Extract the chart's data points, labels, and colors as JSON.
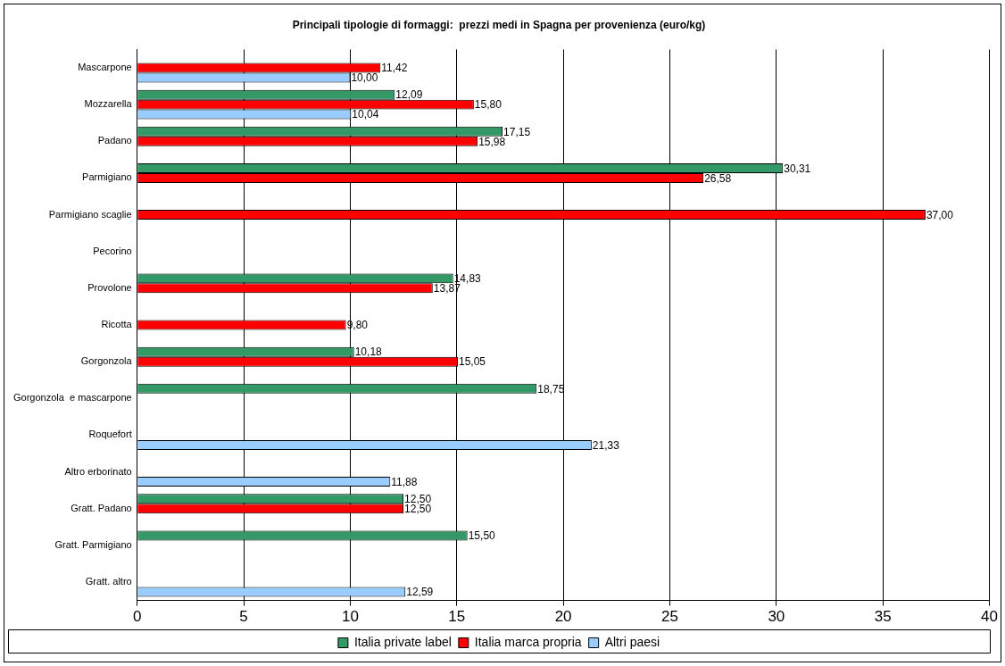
{
  "chart_data": {
    "type": "bar",
    "orientation": "horizontal",
    "title": "Principali tipologie di formaggi:  prezzi medi in Spagna per provenienza (euro/kg)",
    "categories": [
      "Mascarpone",
      "Mozzarella",
      "Padano",
      "Parmigiano",
      "Parmigiano scaglie",
      "Pecorino",
      "Provolone",
      "Ricotta",
      "Gorgonzola",
      "Gorgonzola  e mascarpone",
      "Roquefort",
      "Altro erborinato",
      "Gratt. Padano",
      "Gratt. Parmigiano",
      "Gratt. altro"
    ],
    "series": [
      {
        "name": "Italia private label",
        "color": "#339966",
        "values": [
          null,
          12.09,
          17.15,
          30.31,
          null,
          null,
          14.83,
          null,
          10.18,
          18.75,
          null,
          null,
          12.5,
          15.5,
          null
        ],
        "value_labels": [
          null,
          "12,09",
          "17,15",
          "30,31",
          null,
          null,
          "14,83",
          null,
          "10,18",
          "18,75",
          null,
          null,
          "12,50",
          "15,50",
          null
        ]
      },
      {
        "name": "Italia marca propria",
        "color": "#ff0000",
        "values": [
          11.42,
          15.8,
          15.98,
          26.58,
          37.0,
          null,
          13.87,
          9.8,
          15.05,
          null,
          null,
          null,
          12.5,
          null,
          null
        ],
        "value_labels": [
          "11,42",
          "15,80",
          "15,98",
          "26,58",
          "37,00",
          null,
          "13,87",
          "9,80",
          "15,05",
          null,
          null,
          null,
          "12,50",
          null,
          null
        ]
      },
      {
        "name": "Altri paesi",
        "color": "#99ccff",
        "values": [
          10.0,
          10.04,
          null,
          null,
          null,
          null,
          null,
          null,
          null,
          null,
          21.33,
          11.88,
          null,
          null,
          12.59
        ],
        "value_labels": [
          "10,00",
          "10,04",
          null,
          null,
          null,
          null,
          null,
          null,
          null,
          null,
          "21,33",
          "11,88",
          null,
          null,
          "12,59"
        ]
      }
    ],
    "xlim": [
      0,
      40
    ],
    "xticks": [
      0,
      5,
      10,
      15,
      20,
      25,
      30,
      35,
      40
    ],
    "grid": "x",
    "legend": "bottom"
  }
}
